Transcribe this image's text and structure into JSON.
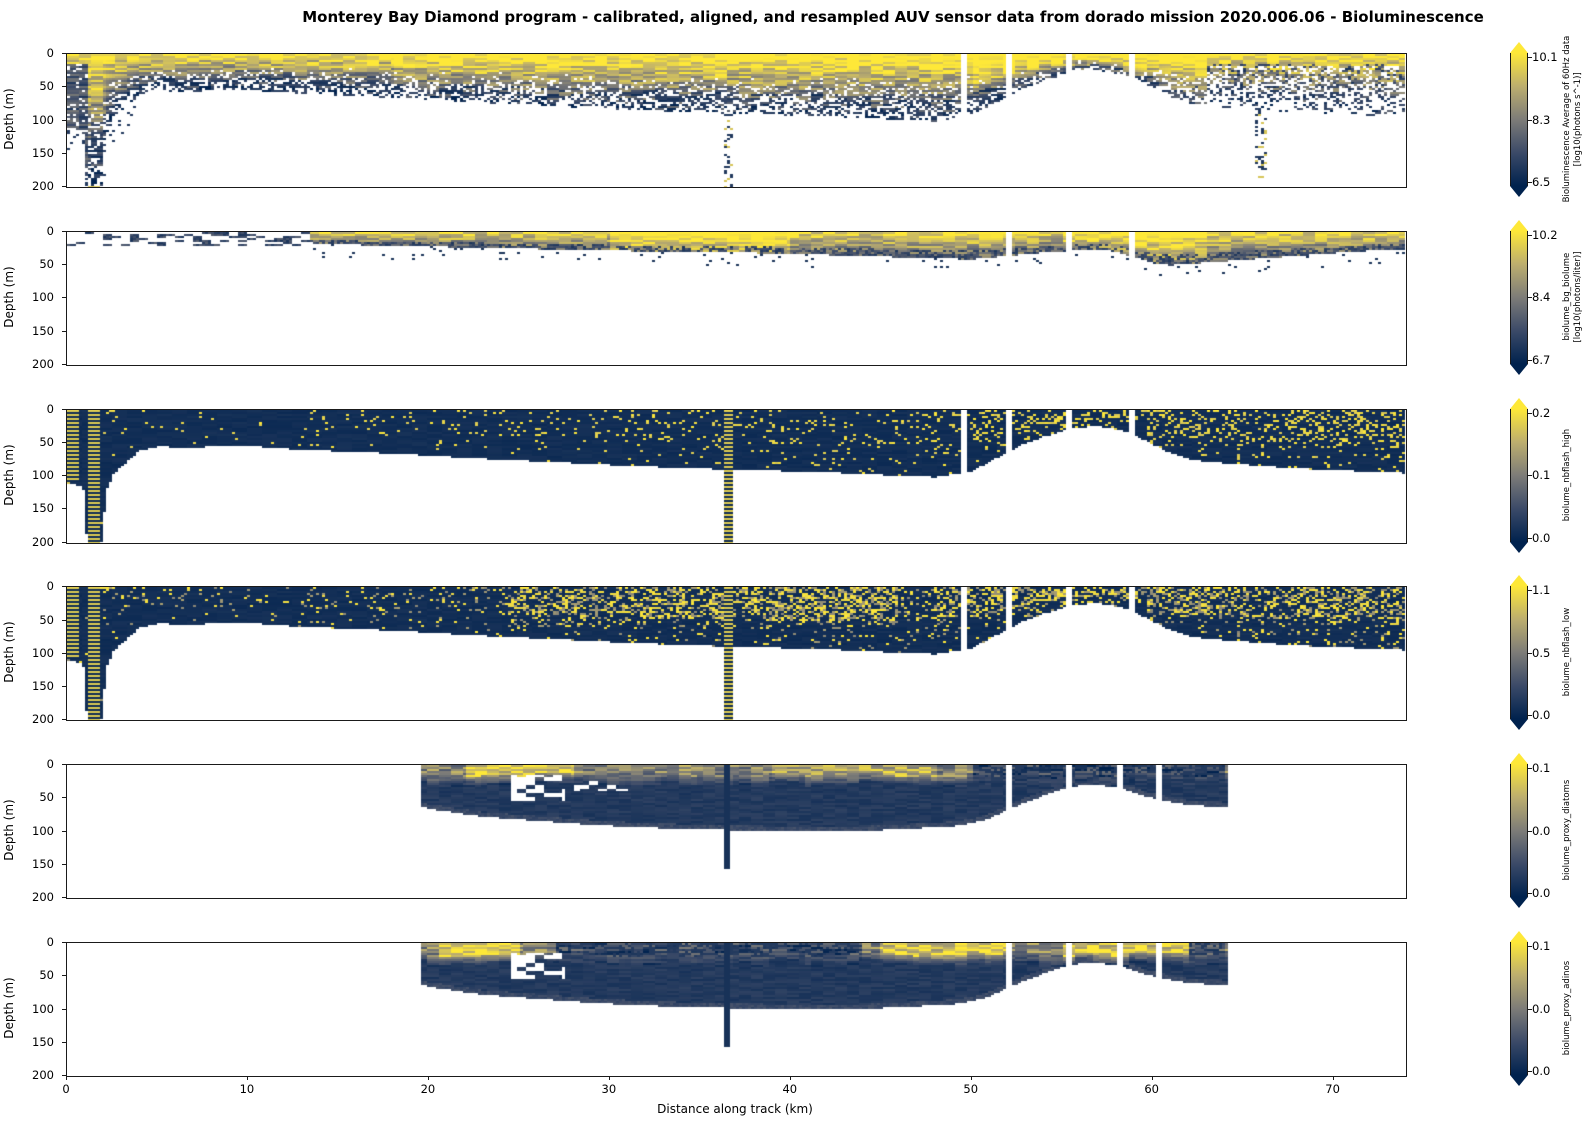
{
  "title": "Monterey Bay Diamond program - calibrated, aligned, and resampled AUV sensor data from dorado mission 2020.006.06 - Bioluminescence",
  "axes": {
    "x_label": "Distance along track (km)",
    "y_label": "Depth (m)",
    "x_ticks": [
      "0",
      "10",
      "20",
      "30",
      "40",
      "50",
      "60",
      "70"
    ],
    "x_tick_values": [
      0,
      10,
      20,
      30,
      40,
      50,
      60,
      70
    ],
    "x_max": 74,
    "y_ticks": [
      "0",
      "50",
      "100",
      "150",
      "200"
    ],
    "y_tick_values": [
      0,
      50,
      100,
      150,
      200
    ],
    "y_max": 200
  },
  "colors": {
    "colormap_name": "cividis",
    "cividis_stops": [
      "#00224e",
      "#3b4a68",
      "#7d7c78",
      "#bcae6e",
      "#fee838"
    ],
    "background": "#ffffff"
  },
  "chart_data": {
    "type": "heatmap",
    "title": "Monterey Bay Diamond program - calibrated, aligned, and resampled AUV sensor data from dorado mission 2020.006.06 - Bioluminescence",
    "xlabel": "Distance along track (km)",
    "ylabel": "Depth (m)",
    "xlim": [
      0,
      74
    ],
    "ylim_depth": [
      0,
      200
    ],
    "envelopes": {
      "main": [
        [
          0,
          110
        ],
        [
          0.9,
          115
        ],
        [
          1.1,
          195
        ],
        [
          1.9,
          200
        ],
        [
          2.2,
          120
        ],
        [
          2.6,
          95
        ],
        [
          4,
          62
        ],
        [
          5,
          55
        ],
        [
          7,
          57
        ],
        [
          9,
          53
        ],
        [
          11,
          56
        ],
        [
          13,
          60
        ],
        [
          16,
          63
        ],
        [
          19,
          67
        ],
        [
          22,
          72
        ],
        [
          25,
          76
        ],
        [
          28,
          80
        ],
        [
          31,
          84
        ],
        [
          34,
          87
        ],
        [
          36,
          89
        ],
        [
          38,
          91
        ],
        [
          40,
          92
        ],
        [
          42,
          94
        ],
        [
          44,
          96
        ],
        [
          46,
          99
        ],
        [
          48,
          101
        ],
        [
          50,
          92
        ],
        [
          51,
          78
        ],
        [
          52,
          63
        ],
        [
          53,
          50
        ],
        [
          54,
          40
        ],
        [
          55,
          32
        ],
        [
          56,
          26
        ],
        [
          57,
          25
        ],
        [
          58,
          29
        ],
        [
          59,
          38
        ],
        [
          60,
          52
        ],
        [
          61,
          65
        ],
        [
          62,
          74
        ],
        [
          63,
          78
        ],
        [
          64,
          80
        ],
        [
          65,
          82
        ],
        [
          66,
          84
        ],
        [
          68,
          88
        ],
        [
          70,
          90
        ],
        [
          72,
          93
        ],
        [
          74,
          95
        ]
      ],
      "band": [
        [
          0,
          14
        ],
        [
          13,
          15
        ],
        [
          14,
          18
        ],
        [
          17,
          20
        ],
        [
          20,
          22
        ],
        [
          24,
          24
        ],
        [
          28,
          27
        ],
        [
          32,
          29
        ],
        [
          36,
          30
        ],
        [
          40,
          33
        ],
        [
          44,
          36
        ],
        [
          47,
          39
        ],
        [
          50,
          41
        ],
        [
          52,
          36
        ],
        [
          54,
          31
        ],
        [
          56,
          27
        ],
        [
          57,
          26
        ],
        [
          58,
          30
        ],
        [
          59,
          38
        ],
        [
          60,
          46
        ],
        [
          61,
          50
        ],
        [
          62,
          48
        ],
        [
          64,
          44
        ],
        [
          66,
          40
        ],
        [
          68,
          36
        ],
        [
          70,
          32
        ],
        [
          72,
          28
        ],
        [
          74,
          26
        ]
      ],
      "south": [
        [
          19.5,
          62
        ],
        [
          20,
          66
        ],
        [
          21,
          70
        ],
        [
          22,
          74
        ],
        [
          23,
          78
        ],
        [
          25,
          82
        ],
        [
          27,
          86
        ],
        [
          29,
          90
        ],
        [
          31,
          93
        ],
        [
          33,
          95
        ],
        [
          35,
          97
        ],
        [
          37,
          98
        ],
        [
          39,
          99
        ],
        [
          41,
          100
        ],
        [
          43,
          100
        ],
        [
          45,
          98
        ],
        [
          47,
          95
        ],
        [
          49,
          92
        ],
        [
          50,
          88
        ],
        [
          51,
          80
        ],
        [
          52,
          68
        ],
        [
          53,
          56
        ],
        [
          54,
          46
        ],
        [
          55,
          37
        ],
        [
          56,
          31
        ],
        [
          57,
          30
        ],
        [
          58,
          34
        ],
        [
          59,
          42
        ],
        [
          60,
          50
        ],
        [
          61,
          56
        ],
        [
          62,
          60
        ],
        [
          63,
          62
        ],
        [
          64.2,
          63
        ]
      ]
    },
    "panels": [
      {
        "id": "bioluminescence_avg_60hz",
        "colorbar": {
          "ticks": [
            "10.1",
            "8.3",
            "6.5"
          ],
          "label_lines": [
            "Bioluminescence Average of 60Hz data",
            "[log10(photons s^-1)]"
          ]
        },
        "render": {
          "kind": "fade",
          "env": "main",
          "coverage": [
            0,
            74
          ],
          "gaps": [
            49.5,
            52.0,
            55.4,
            58.8
          ],
          "bright": [
            [
              18,
              50,
              0.1
            ],
            [
              50,
              63,
              0.22
            ]
          ],
          "spikes": [
            [
              1.2,
              1.9,
              200,
              "mix"
            ],
            [
              36.25,
              36.75,
              200,
              "dots"
            ],
            [
              65.6,
              66.4,
              185,
              "dots"
            ]
          ]
        }
      },
      {
        "id": "biolume_bg_biolume",
        "colorbar": {
          "ticks": [
            "10.2",
            "8.4",
            "6.7"
          ],
          "label_lines": [
            "biolume_bg_biolume",
            "[log10(photons/liter)]"
          ]
        },
        "render": {
          "kind": "band",
          "env": "band",
          "coverage": [
            0,
            74
          ],
          "gaps": [
            52.0,
            55.4,
            58.8
          ],
          "sparse_until": 13.5,
          "bright": [
            [
              30,
              40,
              0.25
            ],
            [
              55,
              63,
              0.15
            ]
          ]
        }
      },
      {
        "id": "biolume_nbflash_high",
        "colorbar": {
          "ticks": [
            "0.2",
            "0.1",
            "0.0"
          ],
          "label_lines": [
            "biolume_nbflash_high"
          ]
        },
        "render": {
          "kind": "speckle",
          "env": "main",
          "coverage": [
            0,
            74
          ],
          "gaps": [
            49.5,
            52.0,
            55.4,
            58.8
          ],
          "base_p": 0.018,
          "slope": 0.0016,
          "boosts": [
            [
              50,
              64,
              0,
              60,
              2.0
            ],
            [
              64,
              74,
              0,
              60,
              1.6
            ]
          ],
          "stripes": [
            [
              0,
              0.6,
              105
            ],
            [
              1.2,
              1.9,
              200
            ],
            [
              36.25,
              36.75,
              200
            ]
          ]
        }
      },
      {
        "id": "biolume_nbflash_low",
        "colorbar": {
          "ticks": [
            "1.1",
            "0.5",
            "0.0"
          ],
          "label_lines": [
            "biolume_nbflash_low"
          ]
        },
        "render": {
          "kind": "speckle",
          "env": "main",
          "coverage": [
            0,
            74
          ],
          "gaps": [
            49.5,
            52.0,
            55.4,
            58.8
          ],
          "base_p": 0.05,
          "slope": 0.0022,
          "dim_mix": 0.45,
          "boosts": [
            [
              24,
              46,
              0,
              60,
              3.0
            ],
            [
              48,
              64,
              0,
              45,
              2.2
            ],
            [
              64,
              74,
              0,
              55,
              1.6
            ]
          ],
          "stripes": [
            [
              0,
              0.6,
              105
            ],
            [
              1.2,
              1.9,
              200
            ],
            [
              36.25,
              36.75,
              200
            ]
          ]
        }
      },
      {
        "id": "biolume_proxy_diatoms",
        "colorbar": {
          "ticks": [
            "0.1",
            "0.0",
            "0.0"
          ],
          "label_lines": [
            "biolume_proxy_diatoms"
          ]
        },
        "render": {
          "kind": "bandsolid",
          "env": "south",
          "coverage": [
            19.5,
            64.2
          ],
          "gaps": [
            52.0,
            55.4,
            58.2,
            60.4
          ],
          "top_depth": 16,
          "bright": [
            [
              22,
              28,
              0.3
            ],
            [
              39,
              48,
              0.18
            ]
          ],
          "dark": [
            [
              50,
              64,
              -0.35
            ]
          ],
          "holes": [
            [
              24.5,
              27.5,
              15,
              55,
              0.45
            ],
            [
              28,
              31,
              20,
              40,
              0.2
            ]
          ],
          "spike": [
            36.3,
            36.7,
            155
          ]
        }
      },
      {
        "id": "biolume_proxy_adinos",
        "colorbar": {
          "ticks": [
            "0.1",
            "0.0",
            "0.0"
          ],
          "label_lines": [
            "biolume_proxy_adinos"
          ]
        },
        "render": {
          "kind": "bandsolid",
          "env": "south",
          "coverage": [
            19.5,
            64.2
          ],
          "gaps": [
            52.0,
            55.4,
            58.2,
            60.4
          ],
          "top_depth": 18,
          "bright": [
            [
              20.5,
              25,
              0.35
            ],
            [
              45,
              52,
              0.3
            ],
            [
              55,
              62,
              0.3
            ]
          ],
          "dark": [
            [
              27,
              44,
              -0.3
            ],
            [
              62,
              64,
              -0.2
            ]
          ],
          "holes": [
            [
              24.5,
              27.5,
              15,
              55,
              0.45
            ]
          ],
          "spike": [
            36.3,
            36.7,
            155
          ]
        }
      }
    ]
  }
}
